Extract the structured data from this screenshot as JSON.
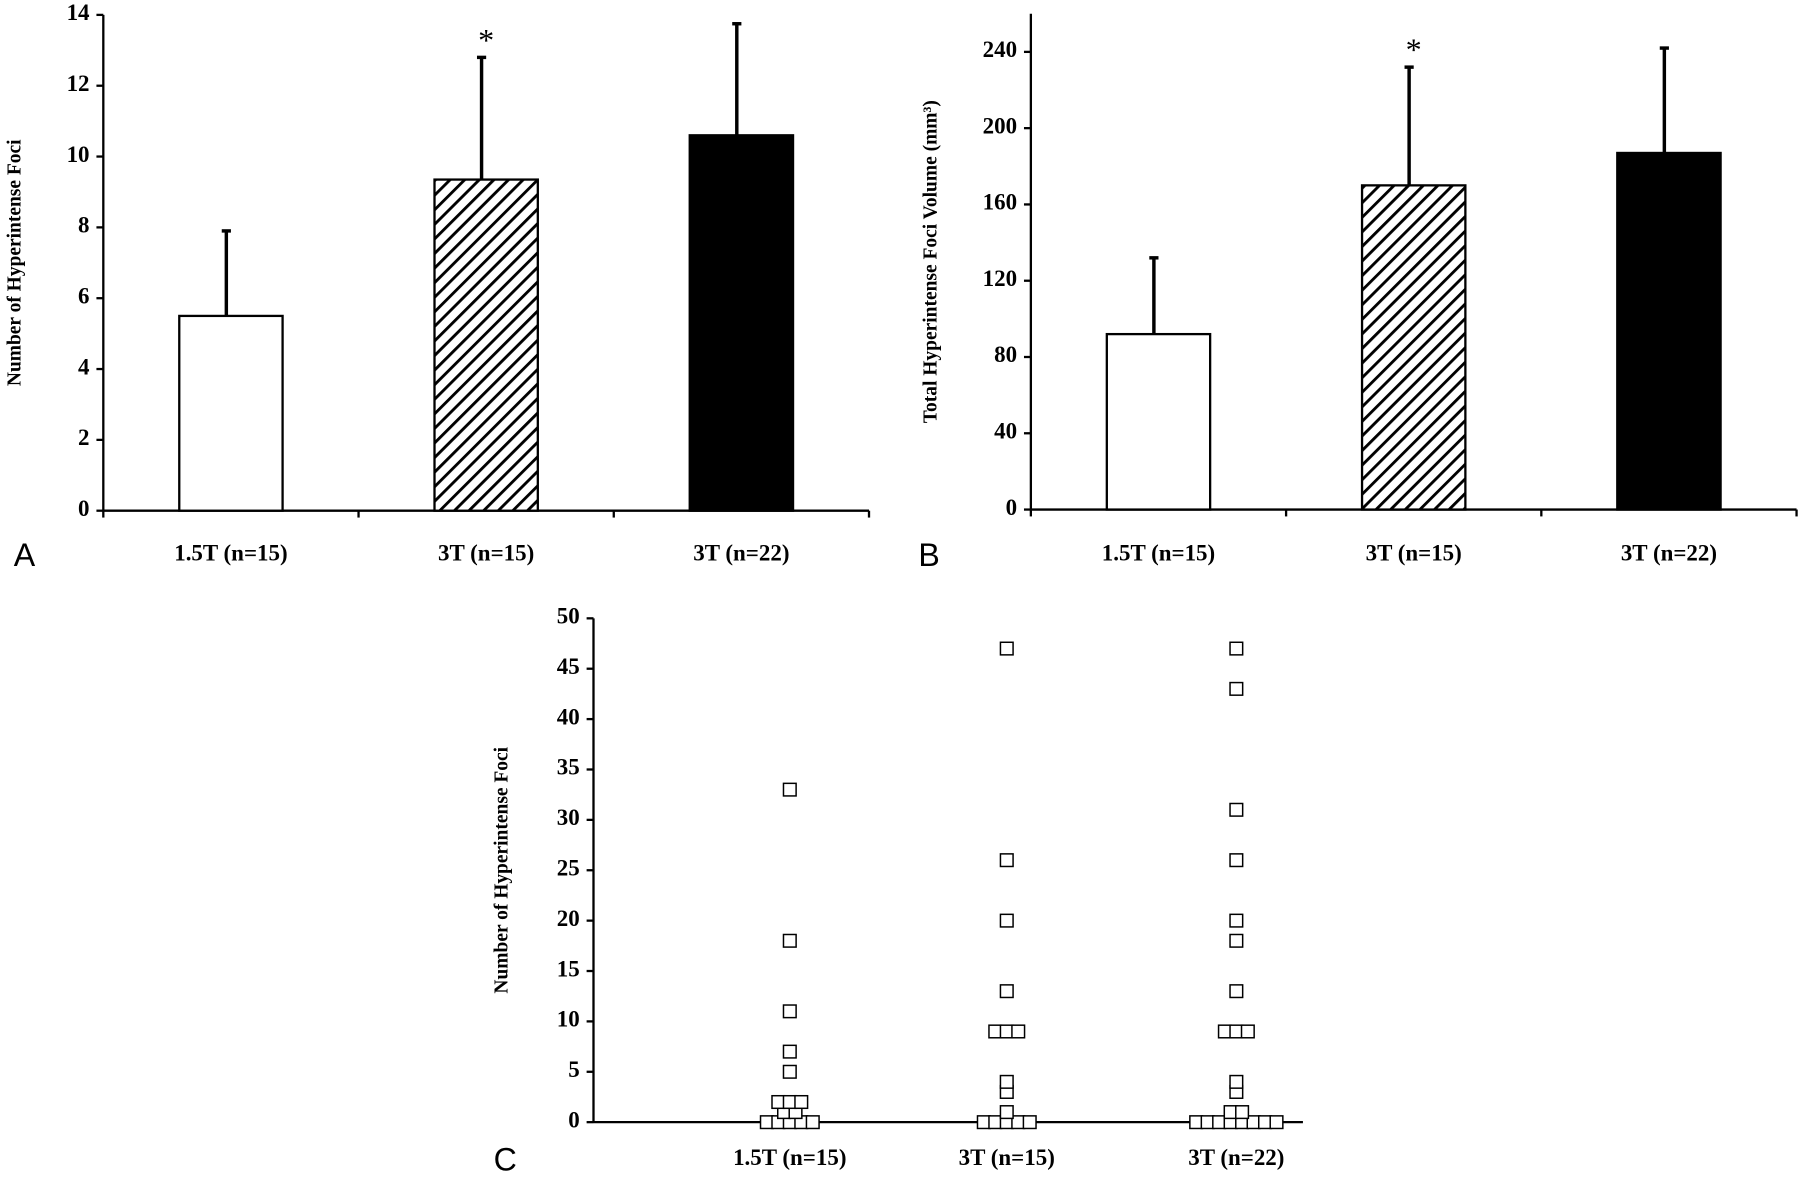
{
  "chart_data": [
    {
      "type": "bar",
      "panel_label": "A",
      "ylabel": "Number of Hyperintense Foci",
      "categories": [
        "1.5T (n=15)",
        "3T (n=15)",
        "3T (n=22)"
      ],
      "values": [
        5.5,
        9.35,
        10.6
      ],
      "errors": [
        2.4,
        3.45,
        3.15
      ],
      "colors": [
        "#ffffff",
        "#ffffff",
        "#000000"
      ],
      "patterns": [
        "none",
        "diagonal",
        "none"
      ],
      "annotations": [
        {
          "text": "*",
          "category": 1
        }
      ],
      "ylim": [
        0,
        14
      ],
      "yticks": [
        0,
        2,
        4,
        6,
        8,
        10,
        12,
        14
      ]
    },
    {
      "type": "bar",
      "panel_label": "B",
      "ylabel": "Total Hyperintense Foci Volume (mm³)",
      "categories": [
        "1.5T (n=15)",
        "3T (n=15)",
        "3T (n=22)"
      ],
      "values": [
        92,
        170,
        187
      ],
      "errors": [
        40,
        62,
        55
      ],
      "colors": [
        "#ffffff",
        "#ffffff",
        "#000000"
      ],
      "patterns": [
        "none",
        "diagonal",
        "none"
      ],
      "annotations": [
        {
          "text": "*",
          "category": 1
        }
      ],
      "ylim": [
        0,
        260
      ],
      "yticks": [
        0,
        40,
        80,
        120,
        160,
        200,
        240
      ]
    },
    {
      "type": "dot",
      "panel_label": "C",
      "ylabel": "Number of Hyperintense Foci",
      "categories": [
        "1.5T (n=15)",
        "3T (n=15)",
        "3T (n=22)"
      ],
      "values": [
        [
          33,
          18,
          11,
          7,
          5,
          2,
          2,
          2,
          1,
          1,
          0,
          0,
          0,
          0,
          0
        ],
        [
          47,
          26,
          20,
          13,
          9,
          9,
          9,
          4,
          3,
          1,
          0,
          0,
          0,
          0,
          0
        ],
        [
          47,
          43,
          31,
          26,
          20,
          18,
          13,
          9,
          9,
          9,
          4,
          3,
          1,
          1,
          0,
          0,
          0,
          0,
          0,
          0,
          0,
          0
        ]
      ],
      "ylim": [
        0,
        50
      ],
      "yticks": [
        0,
        5,
        10,
        15,
        20,
        25,
        30,
        35,
        40,
        45,
        50
      ]
    }
  ]
}
